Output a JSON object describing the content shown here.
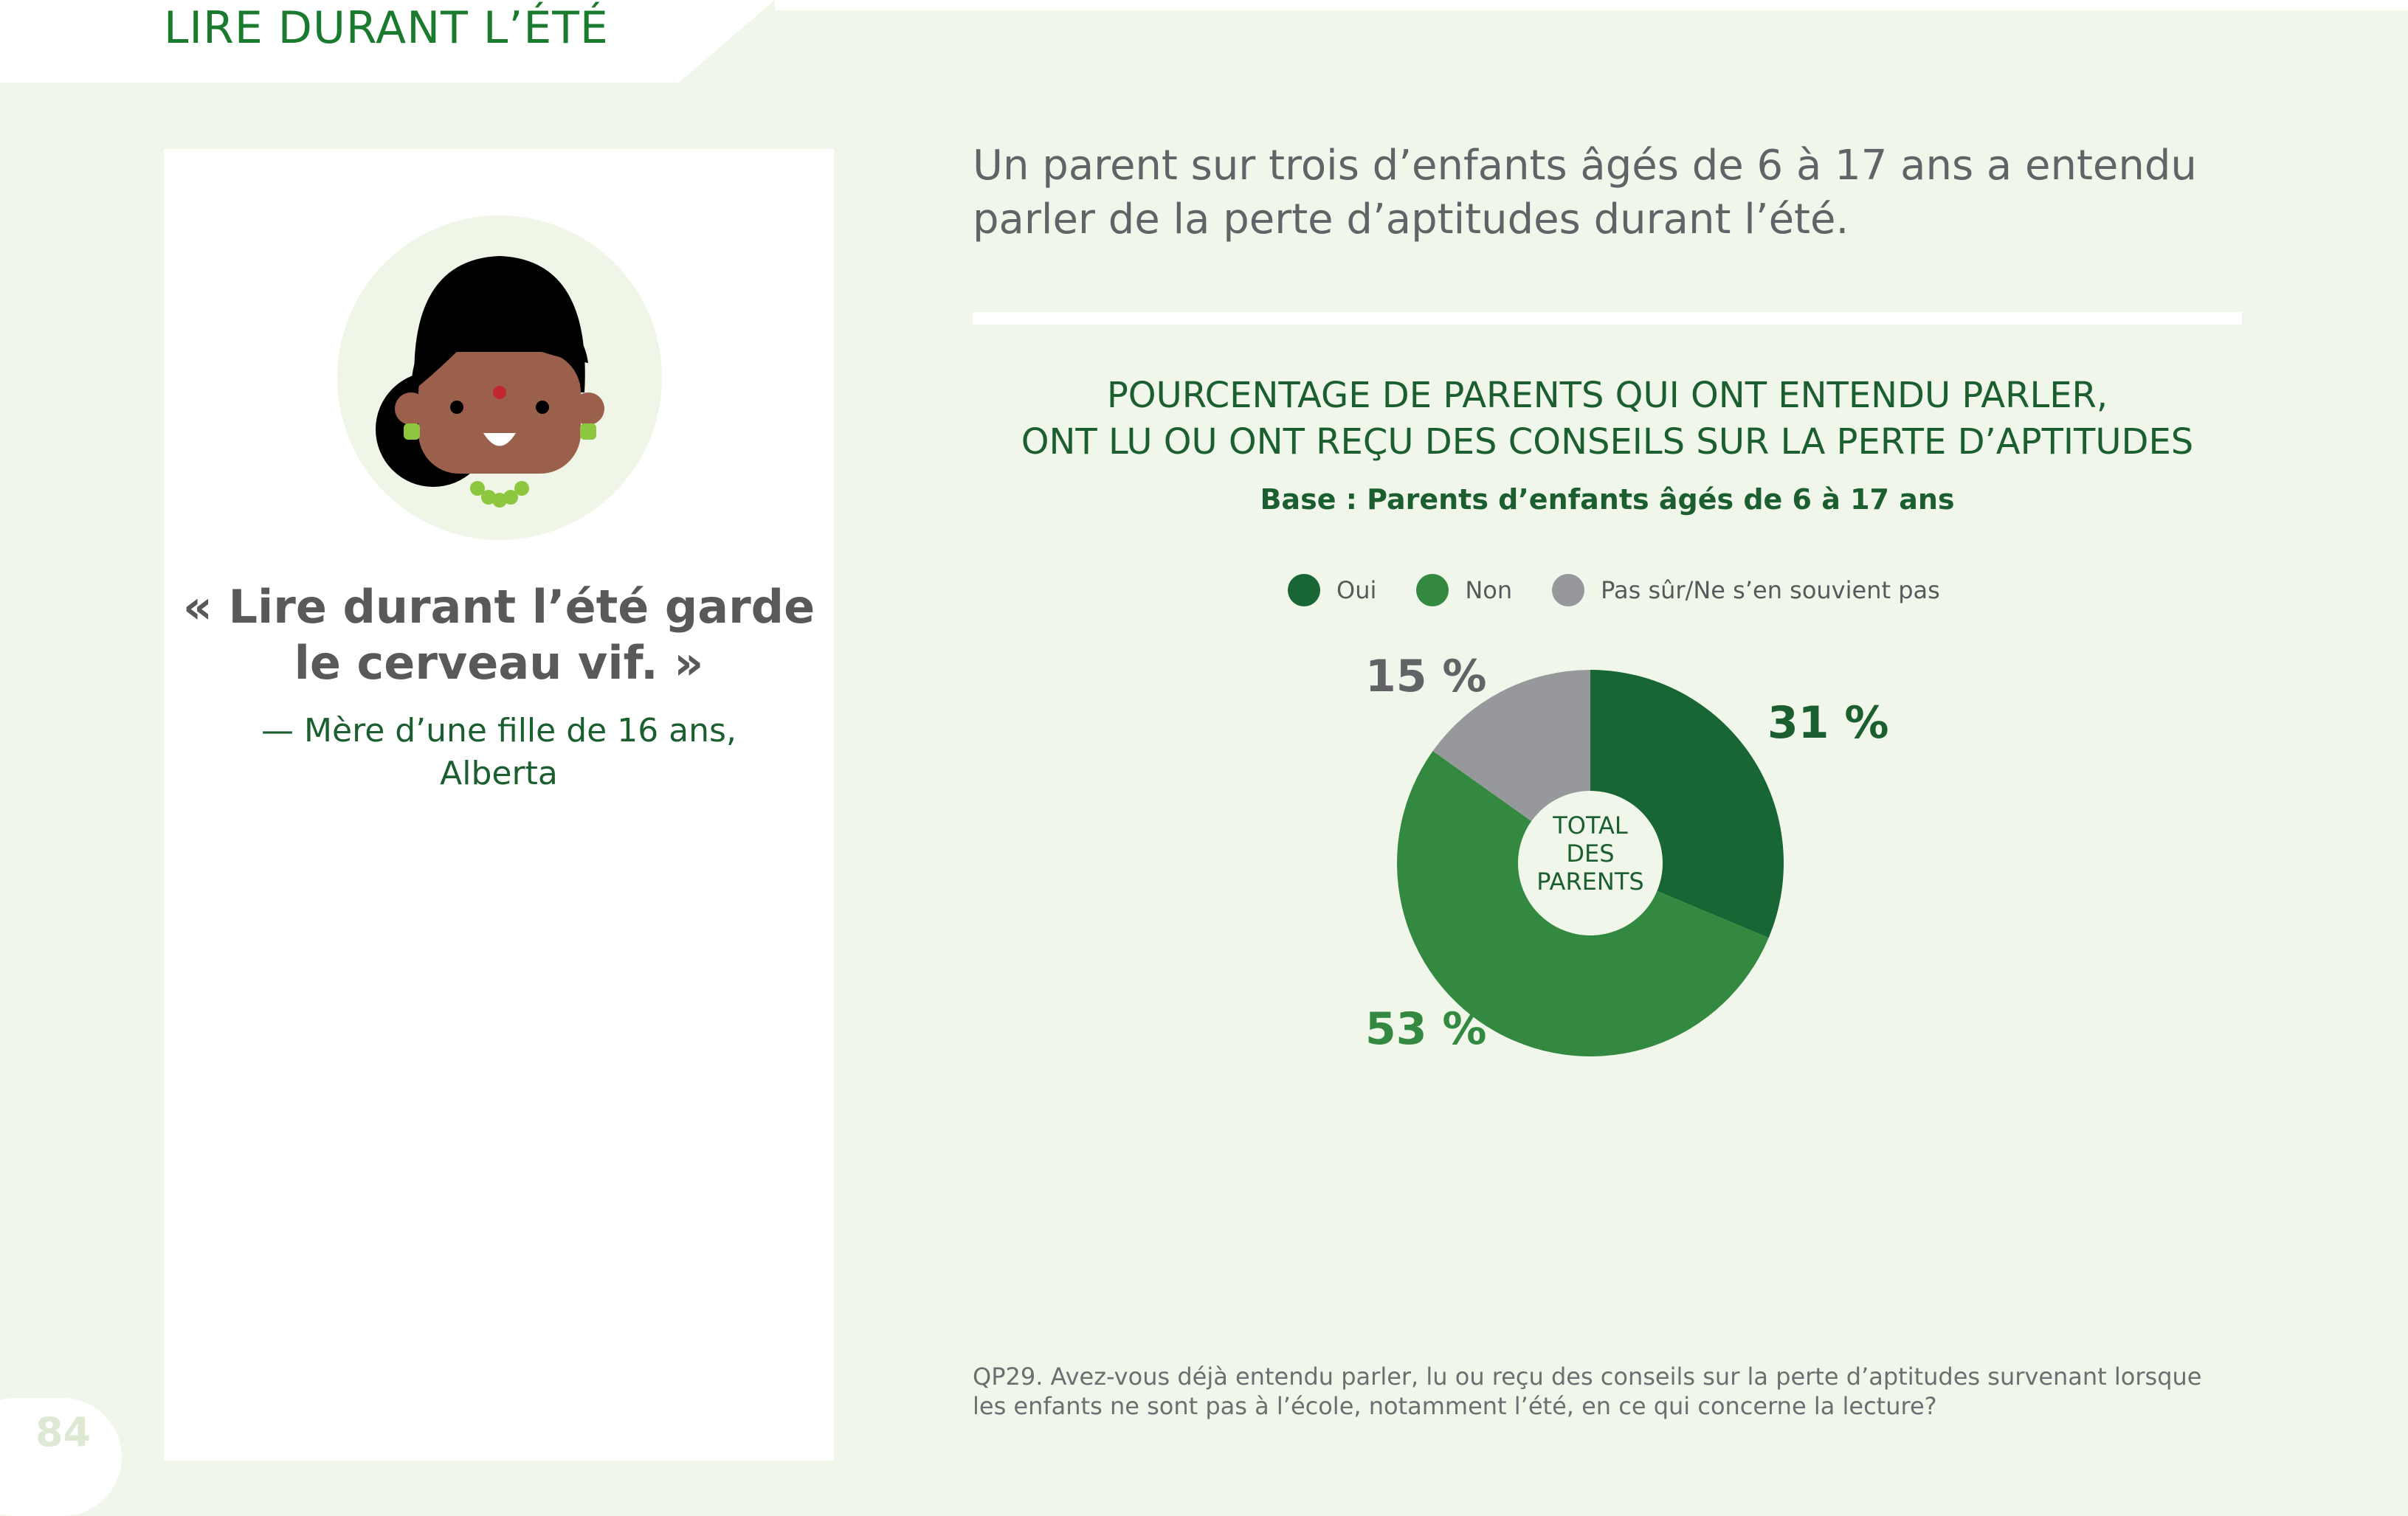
{
  "header": {
    "title": "LIRE DURANT L’ÉTÉ"
  },
  "page_number": "84",
  "sidebar": {
    "quote": "« Lire durant l’été garde le cerveau vif. »",
    "attribution_line1": "— Mère d’une fille de 16 ans,",
    "attribution_line2": "Alberta"
  },
  "headline": "Un parent sur trois d’enfants âgés de 6 à 17 ans a entendu parler de la perte d’aptitudes durant l’été.",
  "chart_data": {
    "type": "pie",
    "title_line1": "POURCENTAGE DE PARENTS QUI ONT ENTENDU PARLER,",
    "title_line2": "ONT LU OU ONT REÇU DES CONSEILS SUR LA PERTE D’APTITUDES",
    "subtitle": "Base : Parents d’enfants âgés de 6 à 17 ans",
    "center_label": [
      "TOTAL",
      "DES",
      "PARENTS"
    ],
    "legend_position": "top",
    "series": [
      {
        "name": "Oui",
        "value": 31,
        "label": "31 %",
        "color": "#176633"
      },
      {
        "name": "Non",
        "value": 53,
        "label": "53 %",
        "color": "#348940"
      },
      {
        "name": "Pas sûr/Ne s’en souvient pas",
        "value": 15,
        "label": "15 %",
        "color": "#97989b"
      }
    ]
  },
  "footnote": "QP29. Avez-vous déjà entendu parler, lu ou reçu des conseils sur la perte d’aptitudes survenant lorsque les enfants ne sont pas à l’école, notamment l’été, en ce qui concerne la lecture?",
  "colors": {
    "background": "#f0f6e9",
    "header_green": "#1a7a2e",
    "dark_green": "#1b5e2f",
    "gray_text": "#58595b"
  }
}
